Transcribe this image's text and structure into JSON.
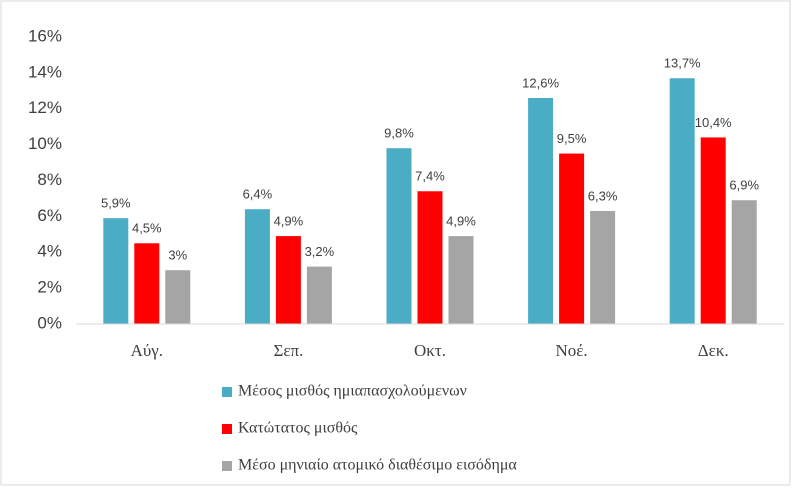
{
  "chart_data": {
    "type": "bar",
    "categories": [
      "Αύγ.",
      "Σεπ.",
      "Οκτ.",
      "Νοέ.",
      "Δεκ."
    ],
    "series": [
      {
        "name": "Μέσος μισθός ημιαπασχολούμενων",
        "color": "#4bacc6",
        "values": [
          5.9,
          6.4,
          9.8,
          12.6,
          13.7
        ],
        "value_labels": [
          "5,9%",
          "6,4%",
          "9,8%",
          "12,6%",
          "13,7%"
        ]
      },
      {
        "name": "Κατώτατος μισθός",
        "color": "#ff0000",
        "values": [
          4.5,
          4.9,
          7.4,
          9.5,
          10.4
        ],
        "value_labels": [
          "4,5%",
          "4,9%",
          "7,4%",
          "9,5%",
          "10,4%"
        ]
      },
      {
        "name": "Μέσο μηνιαίο ατομικό διαθέσιμο εισόδημα",
        "color": "#a5a5a5",
        "values": [
          3,
          3.2,
          4.9,
          6.3,
          6.9
        ],
        "value_labels": [
          "3%",
          "3,2%",
          "4,9%",
          "6,3%",
          "6,9%"
        ]
      }
    ],
    "ylim": [
      0,
      16
    ],
    "yticks": [
      {
        "value": 0,
        "label": "0%"
      },
      {
        "value": 2,
        "label": "2%"
      },
      {
        "value": 4,
        "label": "4%"
      },
      {
        "value": 6,
        "label": "6%"
      },
      {
        "value": 8,
        "label": "8%"
      },
      {
        "value": 10,
        "label": "10%"
      },
      {
        "value": 12,
        "label": "12%"
      },
      {
        "value": 14,
        "label": "14%"
      },
      {
        "value": 16,
        "label": "16%"
      }
    ],
    "grid": false
  }
}
